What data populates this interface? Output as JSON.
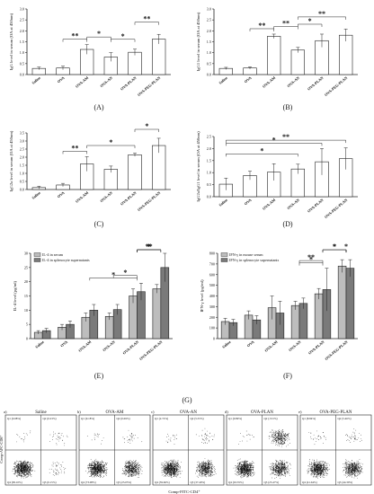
{
  "chart_data": [
    {
      "id": "A",
      "type": "bar",
      "panel_label": "(A)",
      "ylabel": "IgG level in serum (OA at 450nm)",
      "ylim": [
        0,
        3.0
      ],
      "ytick_labels": [
        "0.0",
        "0.5",
        "1.0",
        "1.5",
        "2.0",
        "2.5",
        "3.0"
      ],
      "categories": [
        "Saline",
        "OVA",
        "OVA-AM",
        "OVA-AN",
        "OVA-PLAN",
        "OVA-PEG-PLAN"
      ],
      "values": [
        0.28,
        0.3,
        1.15,
        0.8,
        1.02,
        1.62
      ],
      "errors": [
        0.06,
        0.08,
        0.22,
        0.2,
        0.14,
        0.22
      ],
      "significance": [
        {
          "from": 1,
          "to": 2,
          "label": "**"
        },
        {
          "from": 2,
          "to": 3,
          "label": "*"
        },
        {
          "from": 3,
          "to": 4,
          "label": "*"
        },
        {
          "from": 4,
          "to": 5,
          "label": "**"
        }
      ]
    },
    {
      "id": "B",
      "type": "bar",
      "panel_label": "(B)",
      "ylabel": "IgG1 level in serum (OA at 450nm)",
      "ylim": [
        0,
        3.0
      ],
      "ytick_labels": [
        "0.0",
        "0.5",
        "1.0",
        "1.5",
        "2.0",
        "2.5",
        "3.0"
      ],
      "categories": [
        "Saline",
        "OVA",
        "OVA-AM",
        "OVA-AN",
        "OVA-PLAN",
        "OVA-PEG-PLAN"
      ],
      "values": [
        0.28,
        0.3,
        1.75,
        1.12,
        1.55,
        1.8
      ],
      "errors": [
        0.05,
        0.05,
        0.1,
        0.12,
        0.3,
        0.28
      ],
      "significance": [
        {
          "from": 1,
          "to": 2,
          "label": "**"
        },
        {
          "from": 2,
          "to": 3,
          "label": "**"
        },
        {
          "from": 3,
          "to": 4,
          "label": "*"
        },
        {
          "from": 3,
          "to": 5,
          "label": "**"
        }
      ]
    },
    {
      "id": "C",
      "type": "bar",
      "panel_label": "(C)",
      "ylabel": "IgG2a level in serum (OA at 450nm)",
      "ylim": [
        0,
        3.5
      ],
      "ytick_labels": [
        "0.0",
        "0.5",
        "1.0",
        "1.5",
        "2.0",
        "2.5",
        "3.0",
        "3.5"
      ],
      "categories": [
        "Saline",
        "OVA",
        "OVA-AM",
        "OVA-AN",
        "OVA-PLAN",
        "OVA-PEG-PLAN"
      ],
      "values": [
        0.12,
        0.28,
        1.58,
        1.25,
        2.15,
        2.72
      ],
      "errors": [
        0.08,
        0.1,
        0.45,
        0.2,
        0.1,
        0.45
      ],
      "significance": [
        {
          "from": 1,
          "to": 2,
          "label": "**"
        },
        {
          "from": 2,
          "to": 4,
          "label": "*"
        },
        {
          "from": 4,
          "to": 5,
          "label": "*"
        }
      ]
    },
    {
      "id": "D",
      "type": "bar",
      "panel_label": "(D)",
      "ylabel": "IgG2a/IgG1 level in serum (OA at 450nm)",
      "ylim": [
        0,
        2.5
      ],
      "ytick_labels": [
        "0.0",
        "0.5",
        "1.0",
        "1.5",
        "2.0",
        "2.5"
      ],
      "categories": [
        "Saline",
        "OVA",
        "OVA-AM",
        "OVA-AN",
        "OVA-PLAN",
        "OVA-PEG-PLAN"
      ],
      "values": [
        0.52,
        0.88,
        1.02,
        1.15,
        1.45,
        1.58
      ],
      "errors": [
        0.25,
        0.18,
        0.35,
        0.2,
        0.55,
        0.45
      ],
      "significance": [
        {
          "from": 0,
          "to": 4,
          "label": "*"
        },
        {
          "from": 0,
          "to": 5,
          "label": "**"
        },
        {
          "from": 0,
          "to": 3,
          "label": "*"
        }
      ]
    },
    {
      "id": "E",
      "type": "bar",
      "panel_label": "(E)",
      "ylabel": "IL-4 level (pg/ml)",
      "ylim": [
        0,
        30
      ],
      "ytick_labels": [
        "0",
        "5",
        "10",
        "15",
        "20",
        "25",
        "30"
      ],
      "categories": [
        "Saline",
        "OVA",
        "OVA-AM",
        "OVA-AN",
        "OVA-PLAN",
        "OVA-PEG-PLAN"
      ],
      "series": [
        {
          "name": "IL-4 in serum",
          "values": [
            2.2,
            4.0,
            7.5,
            7.8,
            15.0,
            17.5
          ],
          "errors": [
            0.6,
            1.0,
            1.5,
            1.2,
            2.5,
            1.5
          ]
        },
        {
          "name": "IL-4 in splenocyte supernatants",
          "values": [
            2.8,
            5.0,
            10.0,
            10.2,
            16.5,
            25.0
          ],
          "errors": [
            0.8,
            1.2,
            2.0,
            1.8,
            3.0,
            5.0
          ]
        }
      ],
      "significance": [
        {
          "from": 2,
          "to": 4,
          "label": "*"
        },
        {
          "from": 3,
          "to": 4,
          "label": "*"
        },
        {
          "from": 4,
          "to": 5,
          "label": "*"
        },
        {
          "from": 4,
          "to": 5,
          "label": "*"
        },
        {
          "from": 4,
          "to": 5,
          "label": "**"
        }
      ]
    },
    {
      "id": "F",
      "type": "bar",
      "panel_label": "(F)",
      "ylabel": "IFN-γ level (pg/ml)",
      "ylim": [
        0,
        800
      ],
      "ytick_labels": [
        "0",
        "100",
        "200",
        "300",
        "400",
        "500",
        "600",
        "700",
        "800"
      ],
      "categories": [
        "Saline",
        "OVA",
        "OVA-AM",
        "OVA-AN",
        "OVA-PLAN",
        "OVA-PEG-PLAN"
      ],
      "series": [
        {
          "name": "IFN-γ in mouse serum",
          "values": [
            160,
            220,
            290,
            310,
            420,
            680
          ],
          "errors": [
            30,
            40,
            110,
            40,
            50,
            60
          ]
        },
        {
          "name": "IFN-γ in splenocyte supernatants",
          "values": [
            150,
            175,
            240,
            330,
            460,
            660
          ],
          "errors": [
            30,
            40,
            110,
            50,
            200,
            80
          ]
        }
      ],
      "significance": [
        {
          "from": 3,
          "to": 4,
          "label": "*"
        },
        {
          "from": 3,
          "to": 4,
          "label": "**"
        },
        {
          "from": 4,
          "to": 5,
          "label": "*"
        },
        {
          "from": 4,
          "to": 5,
          "label": "*"
        },
        {
          "from": 5,
          "to": 5,
          "label": "*"
        }
      ]
    },
    {
      "id": "G",
      "type": "scatter",
      "panel_label": "(G)",
      "xlabel": "Comp-FITC-CD4⁺",
      "ylabel": "Comp-APC-CD8⁺",
      "subplots": [
        {
          "letter": "a)",
          "title": "Saline",
          "q1": "Q1 (0.08%)",
          "q2": "Q2 (0.23%)",
          "q3": "Q3 (0.15%)",
          "q4": "Q4 (99.10%)"
        },
        {
          "letter": "b)",
          "title": "OVA-AM",
          "q1": "Q1 (0.18%)",
          "q2": "Q2 (0.69%)",
          "q3": "Q3 (25.05%)",
          "q4": "Q4 (73.08%)"
        },
        {
          "letter": "c)",
          "title": "OVA-AN",
          "q1": "Q1 (2.72%)",
          "q2": "Q2 (5.55%)",
          "q3": "Q3 (37.40%)",
          "q4": "Q4 (59.66%)"
        },
        {
          "letter": "d)",
          "title": "OVA-PLAN",
          "q1": "Q1 (0.89%)",
          "q2": "Q2 (13.5%)",
          "q3": "Q3 (25.47%)",
          "q4": "Q4 (63.35%)"
        },
        {
          "letter": "e)",
          "title": "OVA-PEG-PLAN",
          "q1": "Q1 (8.84%)",
          "q2": "Q2 (5.46%)",
          "q3": "Q3 (44.30%)",
          "q4": "Q4 (41.64%)"
        }
      ]
    }
  ],
  "colors": {
    "bar": "#ffffff",
    "stroke": "#222222",
    "series1": "#bdbdbd",
    "series2": "#7a7a7a",
    "dots": "#111111"
  }
}
